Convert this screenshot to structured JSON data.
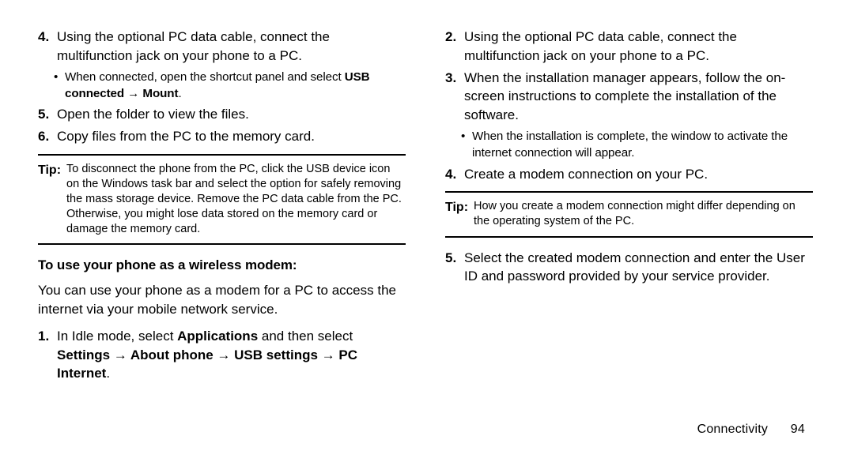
{
  "left": {
    "items": [
      {
        "n": "4",
        "t": "Using the optional PC data cable, connect the multifunction jack on your phone to a PC."
      }
    ],
    "bullet1_pre": "When connected, open the shortcut panel and select ",
    "bullet1_b1": "USB connected",
    "bullet1_b2": "Mount",
    "item5": {
      "n": "5",
      "t": "Open the folder to view the files."
    },
    "item6": {
      "n": "6",
      "t": "Copy files from the PC to the memory card."
    },
    "tip_label": "Tip:",
    "tip_text": "To disconnect the phone from the PC, click the USB device icon on the Windows task bar and select the option for safely removing the mass storage device. Remove the PC data cable from the PC. Otherwise, you might lose data stored on the memory card or damage the memory card.",
    "heading": "To use your phone as a wireless modem:",
    "para": "You can use your phone as a modem for a PC to access the internet via your mobile network service.",
    "s1_n": "1",
    "s1_pre": "In Idle mode, select ",
    "s1_b1": "Applications",
    "s1_mid": " and then select ",
    "s1_b2": "Settings",
    "s1_b3": "About phone",
    "s1_b4": "USB settings",
    "s1_b5": "PC Internet"
  },
  "right": {
    "r2": {
      "n": "2",
      "t": "Using the optional PC data cable, connect the multifunction jack on your phone to a PC."
    },
    "r3": {
      "n": "3",
      "t": "When the installation manager appears, follow the on-screen instructions to complete the installation of the software."
    },
    "bullet": "When the installation is complete, the window to activate the internet connection will appear.",
    "r4": {
      "n": "4",
      "t": "Create a modem connection on your PC."
    },
    "tip_label": "Tip:",
    "tip_text": "How you create a modem connection might differ depending on the operating system of the PC.",
    "r5": {
      "n": "5",
      "t": "Select the created modem connection and enter the User ID and password provided by your service provider."
    }
  },
  "footer": {
    "section": "Connectivity",
    "page": "94"
  }
}
